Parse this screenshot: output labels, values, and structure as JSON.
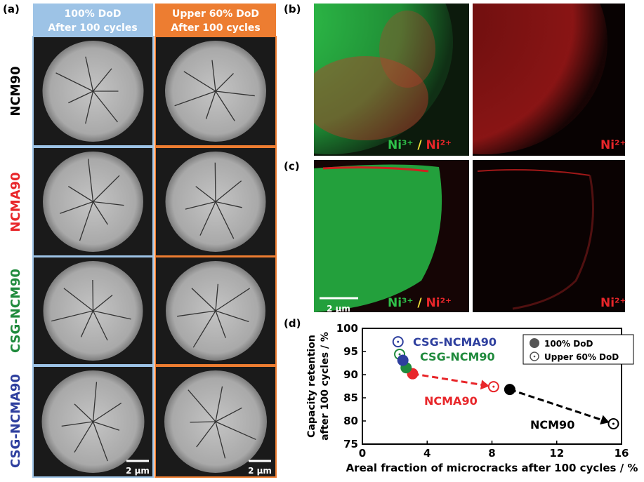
{
  "panel_a": {
    "label": "(a)",
    "columns": [
      [
        "100% DoD",
        "After 100 cycles"
      ],
      [
        "Upper 60% DoD",
        "After 100 cycles"
      ]
    ],
    "rows": [
      "NCM90",
      "NCMA90",
      "CSG-NCM90",
      "CSG-NCMA90"
    ],
    "scale_bar": "2 μm"
  },
  "panel_b": {
    "label": "(b)",
    "overlay": [
      "Ni³⁺",
      "/",
      "Ni²⁺"
    ],
    "single": "Ni²⁺"
  },
  "panel_c": {
    "label": "(c)",
    "overlay": [
      "Ni³⁺",
      "/",
      "Ni²⁺"
    ],
    "single": "Ni²⁺",
    "scale_bar": "2 μm"
  },
  "chart_data": {
    "type": "scatter",
    "label": "(d)",
    "x_label": "Areal fraction of  microcracks  after 100 cycles / %",
    "y_label": [
      "Capacity retention",
      "after 100 cycles / %"
    ],
    "xlim": [
      0,
      16
    ],
    "xticks": [
      0,
      4,
      8,
      12,
      16
    ],
    "ylim": [
      75,
      100
    ],
    "yticks": [
      75,
      80,
      85,
      90,
      95,
      100
    ],
    "legend": [
      "100% DoD",
      "Upper 60% DoD"
    ],
    "legend_position": "upper right",
    "series": [
      {
        "name": "NCM90",
        "color": "#000000",
        "x": [
          9.1,
          15.5
        ],
        "values": [
          86.8,
          79.4
        ],
        "arrow": true
      },
      {
        "name": "NCMA90",
        "color": "#e8262a",
        "x": [
          3.1,
          8.1
        ],
        "values": [
          90.2,
          87.4
        ],
        "arrow": true
      },
      {
        "name": "CSG-NCM90",
        "color": "#1f8a3c",
        "x": [
          2.7,
          2.3
        ],
        "values": [
          91.5,
          94.4
        ],
        "arrow": false
      },
      {
        "name": "CSG-NCMA90",
        "color": "#2e3f9e",
        "x": [
          2.5,
          2.2
        ],
        "values": [
          93.1,
          97.1
        ],
        "arrow": false
      }
    ]
  }
}
